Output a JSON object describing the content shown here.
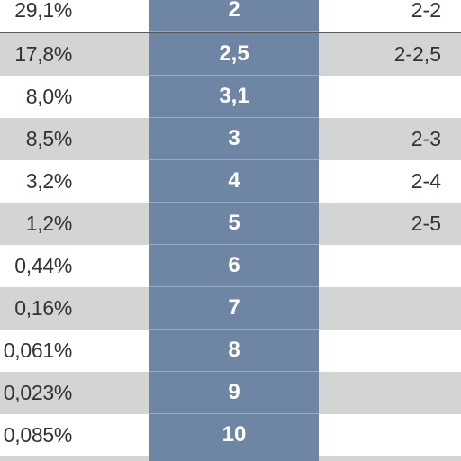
{
  "table": {
    "rows": [
      {
        "percent": "29,1%",
        "value": "2",
        "range": "2-2",
        "shade": false
      },
      {
        "percent": "17,8%",
        "value": "2,5",
        "range": "2-2,5",
        "shade": true
      },
      {
        "percent": "8,0%",
        "value": "3,1",
        "range": "",
        "shade": false
      },
      {
        "percent": "8,5%",
        "value": "3",
        "range": "2-3",
        "shade": true
      },
      {
        "percent": "3,2%",
        "value": "4",
        "range": "2-4",
        "shade": false
      },
      {
        "percent": "1,2%",
        "value": "5",
        "range": "2-5",
        "shade": true
      },
      {
        "percent": "0,44%",
        "value": "6",
        "range": "",
        "shade": false
      },
      {
        "percent": "0,16%",
        "value": "7",
        "range": "",
        "shade": true
      },
      {
        "percent": "0,061%",
        "value": "8",
        "range": "",
        "shade": false
      },
      {
        "percent": "0,023%",
        "value": "9",
        "range": "",
        "shade": true
      },
      {
        "percent": "0,085%",
        "value": "10",
        "range": "",
        "shade": false
      }
    ]
  },
  "colors": {
    "middle_column": "#6e86a4",
    "shaded_row": "#d3d4d4",
    "text": "#333333"
  }
}
